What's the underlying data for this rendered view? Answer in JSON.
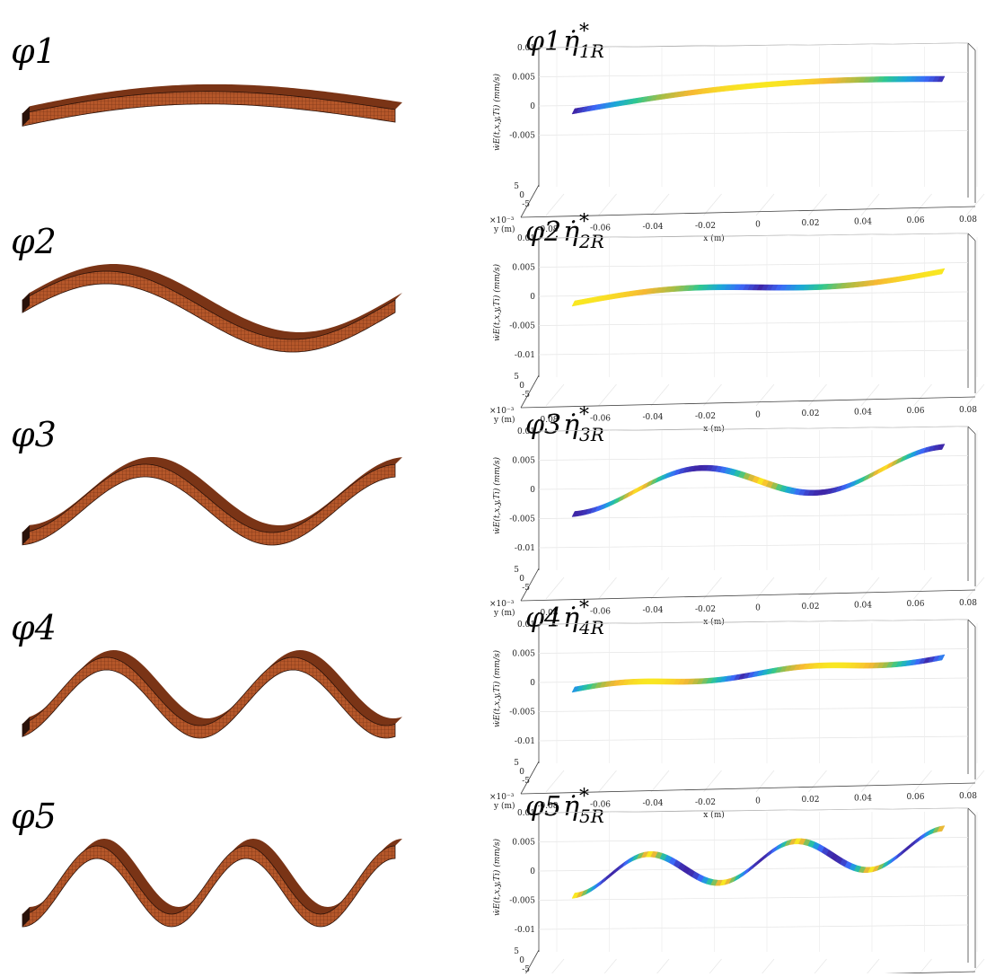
{
  "chart_data": {
    "type": "surface",
    "modes": [
      {
        "shape_label": "φ1",
        "title_main": "φ1",
        "title_eta": "η̇",
        "title_sup": "*",
        "title_sub": "1R",
        "mode_number": 1,
        "phase_shift_turns": 0
      },
      {
        "shape_label": "φ2",
        "title_main": "φ2",
        "title_eta": "η̇",
        "title_sup": "*",
        "title_sub": "2R",
        "mode_number": 2,
        "phase_shift_turns": 0
      },
      {
        "shape_label": "φ3",
        "title_main": "φ3",
        "title_eta": "η̇",
        "title_sup": "*",
        "title_sub": "3R",
        "mode_number": 3,
        "phase_shift_turns": 0
      },
      {
        "shape_label": "φ4",
        "title_main": "φ4",
        "title_eta": "η̇",
        "title_sup": "*",
        "title_sub": "4R",
        "mode_number": 4,
        "phase_shift_turns": 0
      },
      {
        "shape_label": "φ5",
        "title_main": "φ5",
        "title_eta": "η̇",
        "title_sup": "*",
        "title_sub": "5R",
        "mode_number": 5,
        "phase_shift_turns": 0
      }
    ],
    "amplitudes": [
      0.004,
      0.001,
      0.003,
      0.0005,
      0.003
    ],
    "x_ticks": [
      "-0.08",
      "-0.06",
      "-0.04",
      "-0.02",
      "0",
      "0.02",
      "0.04",
      "0.06",
      "0.08"
    ],
    "y_ticks": [
      "5",
      "0",
      "-5"
    ],
    "z_ticks_first": [
      "0.01",
      "0.005",
      "0",
      "-0.005"
    ],
    "z_ticks": [
      "0.01",
      "0.005",
      "0",
      "-0.005",
      "-0.01"
    ],
    "xlabel": "x (m)",
    "ylabel": "y (m)",
    "y_multiplier": "×10⁻³",
    "zlabel": "ẇE(t,x,y,Ti) (mm/s)",
    "xlim": [
      -0.08,
      0.08
    ],
    "zlim": [
      -0.01,
      0.01
    ],
    "colormap": [
      "#3e26a8",
      "#3c68f8",
      "#1aa8d8",
      "#30c88e",
      "#a4bd46",
      "#f7b833",
      "#f9e721"
    ],
    "beam_color": "#b5572a",
    "beam_dark": "#2a120a",
    "grid": true
  }
}
